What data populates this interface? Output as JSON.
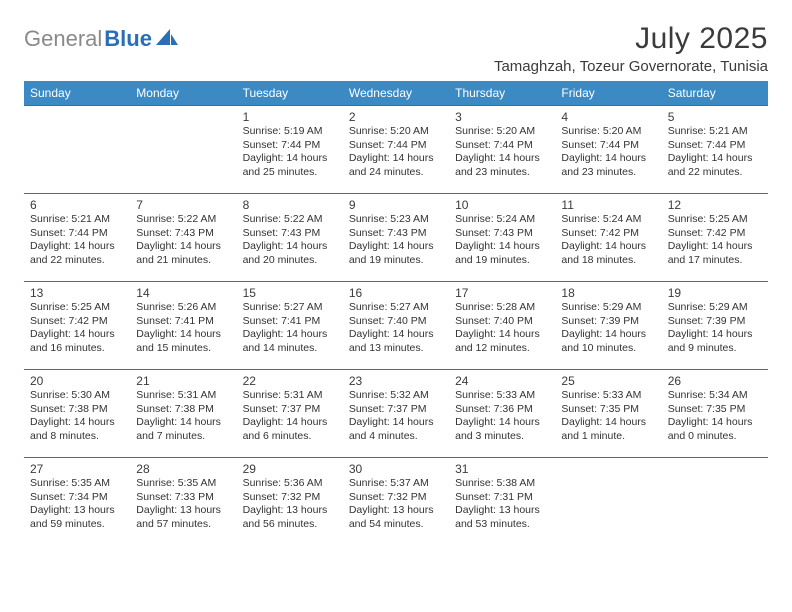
{
  "brand": {
    "part1": "General",
    "part2": "Blue"
  },
  "title": "July 2025",
  "location": "Tamaghzah, Tozeur Governorate, Tunisia",
  "colors": {
    "header_bg": "#3b8ac4",
    "header_text": "#ffffff",
    "row_divider": "#3b6ea0",
    "logo_gray": "#8a8a8a",
    "logo_blue": "#2a6fb5"
  },
  "day_headers": [
    "Sunday",
    "Monday",
    "Tuesday",
    "Wednesday",
    "Thursday",
    "Friday",
    "Saturday"
  ],
  "weeks": [
    [
      null,
      null,
      {
        "day": "1",
        "sunrise": "5:19 AM",
        "sunset": "7:44 PM",
        "daylight": "14 hours and 25 minutes."
      },
      {
        "day": "2",
        "sunrise": "5:20 AM",
        "sunset": "7:44 PM",
        "daylight": "14 hours and 24 minutes."
      },
      {
        "day": "3",
        "sunrise": "5:20 AM",
        "sunset": "7:44 PM",
        "daylight": "14 hours and 23 minutes."
      },
      {
        "day": "4",
        "sunrise": "5:20 AM",
        "sunset": "7:44 PM",
        "daylight": "14 hours and 23 minutes."
      },
      {
        "day": "5",
        "sunrise": "5:21 AM",
        "sunset": "7:44 PM",
        "daylight": "14 hours and 22 minutes."
      }
    ],
    [
      {
        "day": "6",
        "sunrise": "5:21 AM",
        "sunset": "7:44 PM",
        "daylight": "14 hours and 22 minutes."
      },
      {
        "day": "7",
        "sunrise": "5:22 AM",
        "sunset": "7:43 PM",
        "daylight": "14 hours and 21 minutes."
      },
      {
        "day": "8",
        "sunrise": "5:22 AM",
        "sunset": "7:43 PM",
        "daylight": "14 hours and 20 minutes."
      },
      {
        "day": "9",
        "sunrise": "5:23 AM",
        "sunset": "7:43 PM",
        "daylight": "14 hours and 19 minutes."
      },
      {
        "day": "10",
        "sunrise": "5:24 AM",
        "sunset": "7:43 PM",
        "daylight": "14 hours and 19 minutes."
      },
      {
        "day": "11",
        "sunrise": "5:24 AM",
        "sunset": "7:42 PM",
        "daylight": "14 hours and 18 minutes."
      },
      {
        "day": "12",
        "sunrise": "5:25 AM",
        "sunset": "7:42 PM",
        "daylight": "14 hours and 17 minutes."
      }
    ],
    [
      {
        "day": "13",
        "sunrise": "5:25 AM",
        "sunset": "7:42 PM",
        "daylight": "14 hours and 16 minutes."
      },
      {
        "day": "14",
        "sunrise": "5:26 AM",
        "sunset": "7:41 PM",
        "daylight": "14 hours and 15 minutes."
      },
      {
        "day": "15",
        "sunrise": "5:27 AM",
        "sunset": "7:41 PM",
        "daylight": "14 hours and 14 minutes."
      },
      {
        "day": "16",
        "sunrise": "5:27 AM",
        "sunset": "7:40 PM",
        "daylight": "14 hours and 13 minutes."
      },
      {
        "day": "17",
        "sunrise": "5:28 AM",
        "sunset": "7:40 PM",
        "daylight": "14 hours and 12 minutes."
      },
      {
        "day": "18",
        "sunrise": "5:29 AM",
        "sunset": "7:39 PM",
        "daylight": "14 hours and 10 minutes."
      },
      {
        "day": "19",
        "sunrise": "5:29 AM",
        "sunset": "7:39 PM",
        "daylight": "14 hours and 9 minutes."
      }
    ],
    [
      {
        "day": "20",
        "sunrise": "5:30 AM",
        "sunset": "7:38 PM",
        "daylight": "14 hours and 8 minutes."
      },
      {
        "day": "21",
        "sunrise": "5:31 AM",
        "sunset": "7:38 PM",
        "daylight": "14 hours and 7 minutes."
      },
      {
        "day": "22",
        "sunrise": "5:31 AM",
        "sunset": "7:37 PM",
        "daylight": "14 hours and 6 minutes."
      },
      {
        "day": "23",
        "sunrise": "5:32 AM",
        "sunset": "7:37 PM",
        "daylight": "14 hours and 4 minutes."
      },
      {
        "day": "24",
        "sunrise": "5:33 AM",
        "sunset": "7:36 PM",
        "daylight": "14 hours and 3 minutes."
      },
      {
        "day": "25",
        "sunrise": "5:33 AM",
        "sunset": "7:35 PM",
        "daylight": "14 hours and 1 minute."
      },
      {
        "day": "26",
        "sunrise": "5:34 AM",
        "sunset": "7:35 PM",
        "daylight": "14 hours and 0 minutes."
      }
    ],
    [
      {
        "day": "27",
        "sunrise": "5:35 AM",
        "sunset": "7:34 PM",
        "daylight": "13 hours and 59 minutes."
      },
      {
        "day": "28",
        "sunrise": "5:35 AM",
        "sunset": "7:33 PM",
        "daylight": "13 hours and 57 minutes."
      },
      {
        "day": "29",
        "sunrise": "5:36 AM",
        "sunset": "7:32 PM",
        "daylight": "13 hours and 56 minutes."
      },
      {
        "day": "30",
        "sunrise": "5:37 AM",
        "sunset": "7:32 PM",
        "daylight": "13 hours and 54 minutes."
      },
      {
        "day": "31",
        "sunrise": "5:38 AM",
        "sunset": "7:31 PM",
        "daylight": "13 hours and 53 minutes."
      },
      null,
      null
    ]
  ],
  "labels": {
    "sunrise": "Sunrise:",
    "sunset": "Sunset:",
    "daylight": "Daylight:"
  }
}
